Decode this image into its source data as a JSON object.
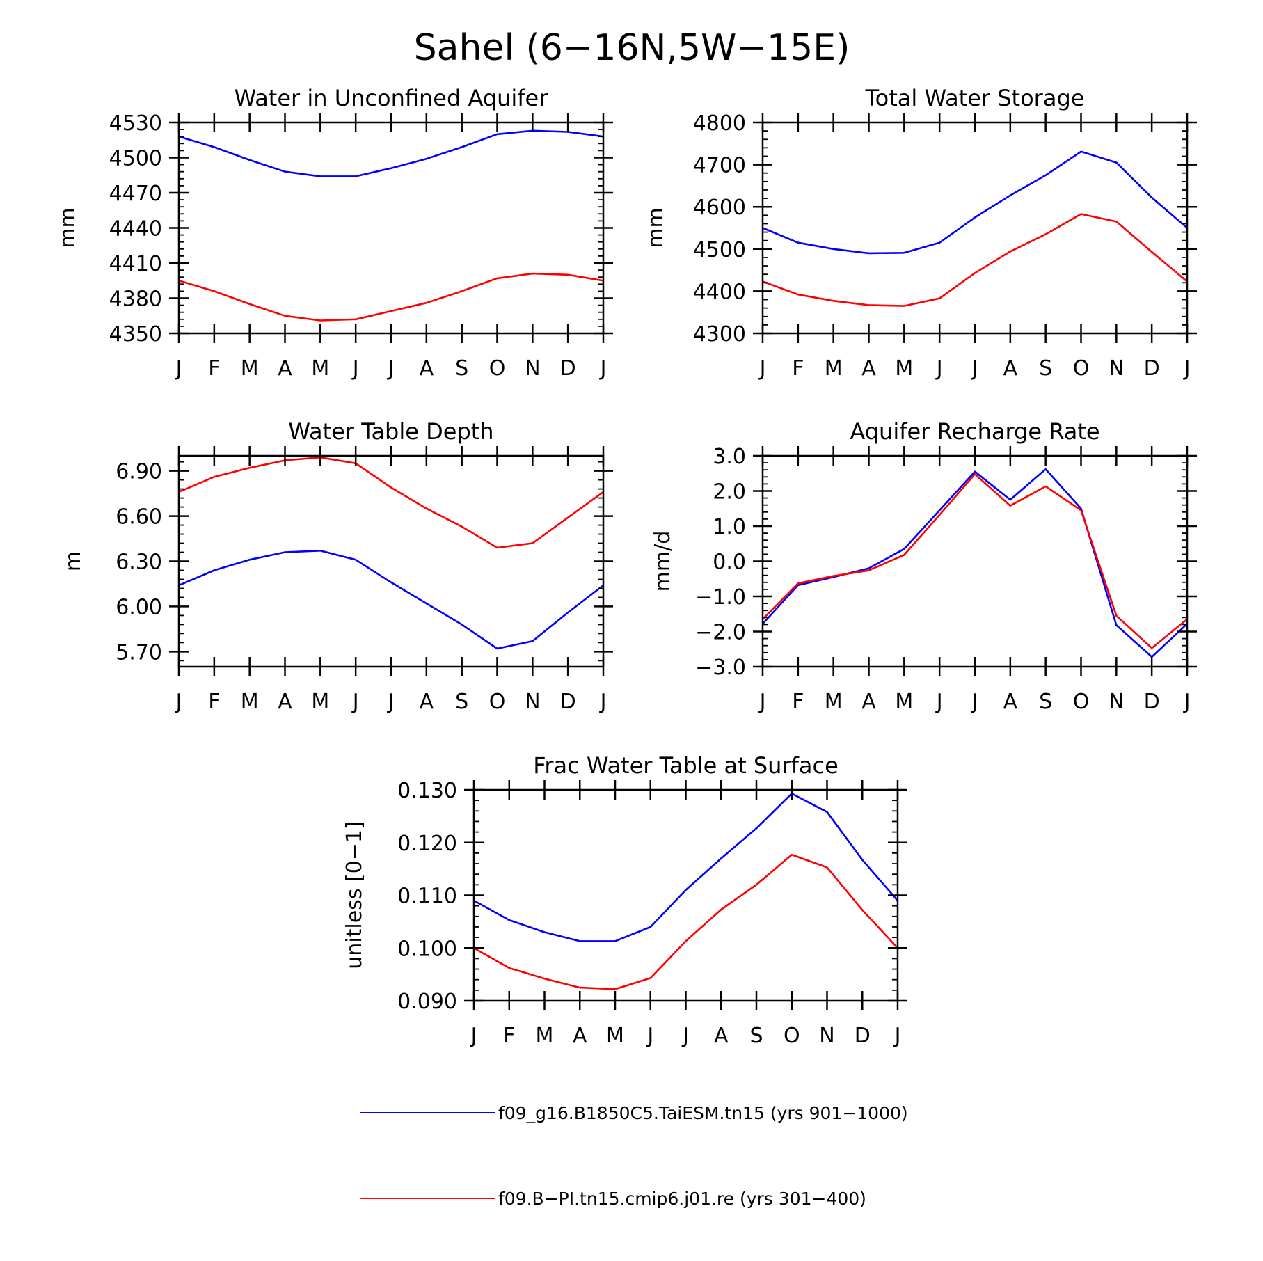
{
  "figure_title": "Sahel (6−16N,5W−15E)",
  "legend": [
    {
      "label": "f09_g16.B1850C5.TaiESM.tn15 (yrs 901−1000)",
      "color": "#0000ff"
    },
    {
      "label": "f09.B−PI.tn15.cmip6.j01.re (yrs 301−400)",
      "color": "#ff0000"
    }
  ],
  "chart_data": [
    {
      "type": "line",
      "title": "Water in Unconfined Aquifer",
      "ylabel": "mm",
      "categories": [
        "J",
        "F",
        "M",
        "A",
        "M",
        "J",
        "J",
        "A",
        "S",
        "O",
        "N",
        "D",
        "J"
      ],
      "ylim": [
        4350,
        4530
      ],
      "yticks": [
        4350,
        4380,
        4410,
        4440,
        4470,
        4500,
        4530
      ],
      "ytick_labels": [
        "4350",
        "4380",
        "4410",
        "4440",
        "4470",
        "4500",
        "4530"
      ],
      "series": [
        {
          "name": "f09_g16.B1850C5.TaiESM.tn15 (yrs 901−1000)",
          "color": "#0000ff",
          "values": [
            4518,
            4509,
            4498,
            4488,
            4484,
            4484,
            4491,
            4499,
            4509,
            4520,
            4523,
            4522,
            4518
          ]
        },
        {
          "name": "f09.B−PI.tn15.cmip6.j01.re (yrs 301−400)",
          "color": "#ff0000",
          "values": [
            4395,
            4386,
            4375,
            4365,
            4361,
            4362,
            4369,
            4376,
            4386,
            4397,
            4401,
            4400,
            4395
          ]
        }
      ]
    },
    {
      "type": "line",
      "title": "Total Water Storage",
      "ylabel": "mm",
      "categories": [
        "J",
        "F",
        "M",
        "A",
        "M",
        "J",
        "J",
        "A",
        "S",
        "O",
        "N",
        "D",
        "J"
      ],
      "ylim": [
        4300,
        4800
      ],
      "yticks": [
        4300,
        4400,
        4500,
        4600,
        4700,
        4800
      ],
      "ytick_labels": [
        "4300",
        "4400",
        "4500",
        "4600",
        "4700",
        "4800"
      ],
      "series": [
        {
          "name": "f09_g16.B1850C5.TaiESM.tn15 (yrs 901−1000)",
          "color": "#0000ff",
          "values": [
            4550,
            4515,
            4500,
            4490,
            4491,
            4515,
            4575,
            4627,
            4675,
            4731,
            4705,
            4622,
            4550
          ]
        },
        {
          "name": "f09.B−PI.tn15.cmip6.j01.re (yrs 301−400)",
          "color": "#ff0000",
          "values": [
            4423,
            4392,
            4377,
            4367,
            4365,
            4383,
            4443,
            4494,
            4535,
            4583,
            4565,
            4493,
            4423
          ]
        }
      ]
    },
    {
      "type": "line",
      "title": "Water Table Depth",
      "ylabel": "m",
      "categories": [
        "J",
        "F",
        "M",
        "A",
        "M",
        "J",
        "J",
        "A",
        "S",
        "O",
        "N",
        "D",
        "J"
      ],
      "ylim": [
        5.6,
        7.0
      ],
      "yticks": [
        5.7,
        6.0,
        6.3,
        6.6,
        6.9
      ],
      "ytick_labels": [
        "5.70",
        "6.00",
        "6.30",
        "6.60",
        "6.90"
      ],
      "series": [
        {
          "name": "f09_g16.B1850C5.TaiESM.tn15 (yrs 901−1000)",
          "color": "#0000ff",
          "values": [
            6.14,
            6.24,
            6.31,
            6.36,
            6.37,
            6.31,
            6.16,
            6.02,
            5.88,
            5.72,
            5.77,
            5.96,
            6.14
          ]
        },
        {
          "name": "f09.B−PI.tn15.cmip6.j01.re (yrs 301−400)",
          "color": "#ff0000",
          "values": [
            6.76,
            6.86,
            6.92,
            6.97,
            6.99,
            6.95,
            6.79,
            6.65,
            6.53,
            6.39,
            6.42,
            6.59,
            6.76
          ]
        }
      ]
    },
    {
      "type": "line",
      "title": "Aquifer Recharge Rate",
      "ylabel": "mm/d",
      "categories": [
        "J",
        "F",
        "M",
        "A",
        "M",
        "J",
        "J",
        "A",
        "S",
        "O",
        "N",
        "D",
        "J"
      ],
      "ylim": [
        -3.0,
        3.0
      ],
      "yticks": [
        -3,
        -2,
        -1,
        0,
        1,
        2,
        3
      ],
      "ytick_labels": [
        "−3.0",
        "−2.0",
        "−1.0",
        "0.0",
        "1.0",
        "2.0",
        "3.0"
      ],
      "series": [
        {
          "name": "f09_g16.B1850C5.TaiESM.tn15 (yrs 901−1000)",
          "color": "#0000ff",
          "values": [
            -1.78,
            -0.68,
            -0.45,
            -0.2,
            0.35,
            1.45,
            2.55,
            1.75,
            2.62,
            1.5,
            -1.82,
            -2.72,
            -1.78
          ]
        },
        {
          "name": "f09.B−PI.tn15.cmip6.j01.re (yrs 301−400)",
          "color": "#ff0000",
          "values": [
            -1.65,
            -0.63,
            -0.42,
            -0.26,
            0.18,
            1.32,
            2.48,
            1.58,
            2.13,
            1.45,
            -1.55,
            -2.47,
            -1.65
          ]
        }
      ]
    },
    {
      "type": "line",
      "title": "Frac Water Table at Surface",
      "ylabel": "unitless [0−1]",
      "categories": [
        "J",
        "F",
        "M",
        "A",
        "M",
        "J",
        "J",
        "A",
        "S",
        "O",
        "N",
        "D",
        "J"
      ],
      "ylim": [
        0.09,
        0.13
      ],
      "yticks": [
        0.09,
        0.1,
        0.11,
        0.12,
        0.13
      ],
      "ytick_labels": [
        "0.090",
        "0.100",
        "0.110",
        "0.120",
        "0.130"
      ],
      "series": [
        {
          "name": "f09_g16.B1850C5.TaiESM.tn15 (yrs 901−1000)",
          "color": "#0000ff",
          "values": [
            0.109,
            0.1053,
            0.103,
            0.1013,
            0.1013,
            0.104,
            0.111,
            0.117,
            0.1227,
            0.1293,
            0.1258,
            0.1167,
            0.109
          ]
        },
        {
          "name": "f09.B−PI.tn15.cmip6.j01.re (yrs 301−400)",
          "color": "#ff0000",
          "values": [
            0.1,
            0.0962,
            0.0942,
            0.0925,
            0.0922,
            0.0943,
            0.1013,
            0.1073,
            0.112,
            0.1177,
            0.1153,
            0.1072,
            0.1
          ]
        }
      ]
    }
  ]
}
